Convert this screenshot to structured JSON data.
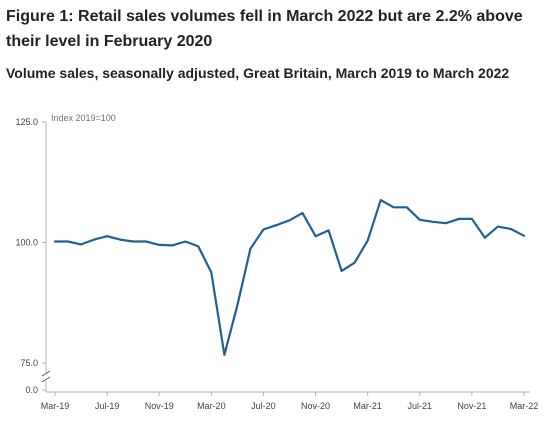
{
  "figure": {
    "title": "Figure 1: Retail sales volumes fell in March 2022 but are 2.2% above their level in February 2020",
    "subtitle": "Volume sales, seasonally adjusted, Great Britain, March 2019 to March 2022"
  },
  "chart_data": {
    "type": "line",
    "title": "Figure 1: Retail sales volumes fell in March 2022 but are 2.2% above their level in February 2020",
    "subtitle": "Volume sales, seasonally adjusted, Great Britain, March 2019 to March 2022",
    "ylabel": "Index 2019=100",
    "xlabel": "",
    "x": [
      "Mar-19",
      "Apr-19",
      "May-19",
      "Jun-19",
      "Jul-19",
      "Aug-19",
      "Sep-19",
      "Oct-19",
      "Nov-19",
      "Dec-19",
      "Jan-20",
      "Feb-20",
      "Mar-20",
      "Apr-20",
      "May-20",
      "Jun-20",
      "Jul-20",
      "Aug-20",
      "Sep-20",
      "Oct-20",
      "Nov-20",
      "Dec-20",
      "Jan-21",
      "Feb-21",
      "Mar-21",
      "Apr-21",
      "May-21",
      "Jun-21",
      "Jul-21",
      "Aug-21",
      "Sep-21",
      "Oct-21",
      "Nov-21",
      "Dec-21",
      "Jan-22",
      "Feb-22",
      "Mar-22"
    ],
    "series": [
      {
        "values": [
          100.2,
          100.2,
          99.6,
          100.6,
          101.3,
          100.6,
          100.2,
          100.2,
          99.5,
          99.4,
          100.2,
          99.2,
          93.8,
          76.7,
          87.0,
          98.7,
          102.7,
          103.6,
          104.6,
          106.1,
          101.3,
          102.5,
          94.1,
          95.8,
          100.4,
          108.8,
          107.3,
          107.3,
          104.7,
          104.3,
          104.0,
          104.9,
          104.9,
          101.0,
          103.3,
          102.8,
          101.4
        ]
      }
    ],
    "x_tick_labels": [
      "Mar-19",
      "Jul-19",
      "Nov-19",
      "Mar-20",
      "Jul-20",
      "Nov-20",
      "Mar-21",
      "Jul-21",
      "Nov-21",
      "Mar-22"
    ],
    "y_tick_labels": [
      "125.0",
      "100.0",
      "75.0",
      "0.0"
    ],
    "y_ticks": [
      125,
      100,
      75,
      0
    ],
    "ylim": [
      75,
      125
    ],
    "axis_break": true,
    "grid": false,
    "legend": "none",
    "line_color": "#206095",
    "axis_color": "#b3b3b3",
    "text_color": "#414042"
  }
}
